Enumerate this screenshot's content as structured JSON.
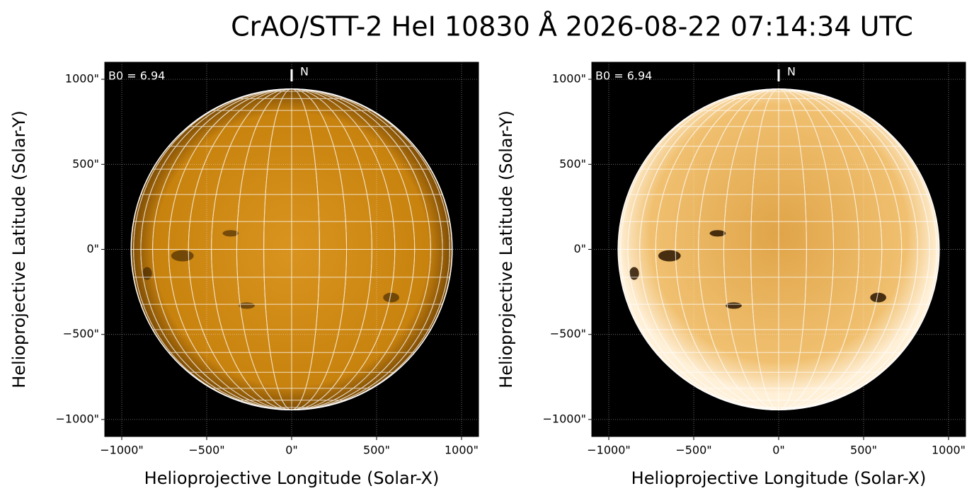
{
  "title": "CrAO/STT-2 HeI 10830 Å 2026-08-22 07:14:34 UTC",
  "chart_data": [
    {
      "type": "image",
      "x_label": "Helioprojective Longitude (Solar-X)",
      "y_label": "Helioprojective Latitude (Solar-Y)",
      "annotation": "B0 = 6.94",
      "north_label": "N",
      "disk_radius": 945,
      "color": "#c8820e",
      "grid": true,
      "xlim": [
        -1100,
        1100
      ],
      "ylim": [
        -1100,
        1100
      ],
      "xticks": [
        {
          "value": -1000,
          "label": "−1000\""
        },
        {
          "value": -500,
          "label": "−500\""
        },
        {
          "value": 0,
          "label": "0\""
        },
        {
          "value": 500,
          "label": "500\""
        },
        {
          "value": 1000,
          "label": "1000\""
        }
      ],
      "yticks": [
        {
          "value": -1000,
          "label": "−1000\""
        },
        {
          "value": -500,
          "label": "−500\""
        },
        {
          "value": 0,
          "label": "0\""
        },
        {
          "value": 500,
          "label": "500\""
        },
        {
          "value": 1000,
          "label": "1000\""
        }
      ]
    },
    {
      "type": "image",
      "x_label": "Helioprojective Longitude (Solar-X)",
      "y_label": "Helioprojective Latitude (Solar-Y)",
      "annotation": "B0 = 6.94",
      "north_label": "N",
      "disk_radius": 945,
      "color": "#e8b050",
      "grid": true,
      "xlim": [
        -1100,
        1100
      ],
      "ylim": [
        -1100,
        1100
      ],
      "xticks": [
        {
          "value": -1000,
          "label": "−1000\""
        },
        {
          "value": -500,
          "label": "−500\""
        },
        {
          "value": 0,
          "label": "0\""
        },
        {
          "value": 500,
          "label": "500\""
        },
        {
          "value": 1000,
          "label": "1000\""
        }
      ],
      "yticks": [
        {
          "value": -1000,
          "label": "−1000\""
        },
        {
          "value": -500,
          "label": "−500\""
        },
        {
          "value": 0,
          "label": "0\""
        },
        {
          "value": 500,
          "label": "500\""
        },
        {
          "value": 1000,
          "label": "1000\""
        }
      ]
    }
  ]
}
